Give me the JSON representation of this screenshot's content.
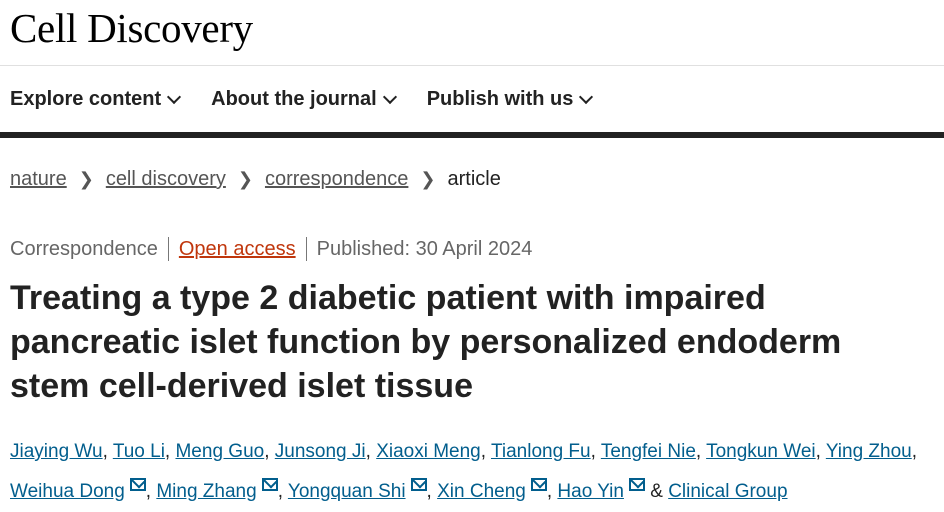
{
  "header": {
    "brand": "Cell Discovery"
  },
  "nav": {
    "items": [
      {
        "label": "Explore content"
      },
      {
        "label": "About the journal"
      },
      {
        "label": "Publish with us"
      }
    ]
  },
  "breadcrumb": {
    "items": [
      "nature",
      "cell discovery",
      "correspondence"
    ],
    "current": "article"
  },
  "article": {
    "type": "Correspondence",
    "access": "Open access",
    "published": "Published: 30 April 2024",
    "title": "Treating a type 2 diabetic patient with impaired pancreatic islet function by personalized endoderm stem cell-derived islet tissue",
    "authors": [
      "Jiaying Wu",
      "Tuo Li",
      "Meng Guo",
      "Junsong Ji",
      "Xiaoxi Meng",
      "Tianlong Fu",
      "Tengfei Nie",
      "Tongkun Wei",
      "Ying Zhou",
      "Weihua Dong",
      "Ming Zhang",
      "Yongquan Shi",
      "Xin Cheng",
      "Hao Yin"
    ],
    "author_sep": ", ",
    "last_sep": " & ",
    "group": "Clinical Group",
    "corresponding": [
      "Weihua Dong",
      "Ming Zhang",
      "Yongquan Shi",
      "Xin Cheng",
      "Hao Yin"
    ]
  },
  "colors": {
    "link": "#025e8d",
    "open_access": "#c0360c",
    "bar": "#222222"
  },
  "icons": {
    "nav": "chevron-down-icon",
    "corresponding": "envelope-icon"
  }
}
